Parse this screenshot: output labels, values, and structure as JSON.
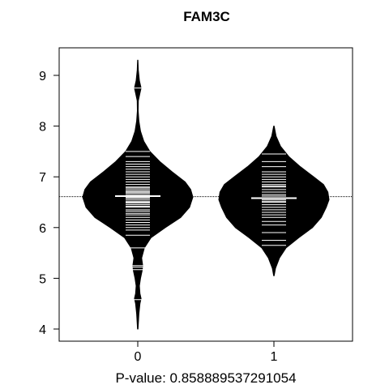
{
  "chart_data": {
    "type": "beanplot",
    "title": "FAM3C",
    "xlabel": "P-value: 0.858889537291054",
    "categories": [
      "0",
      "1"
    ],
    "yticks": [
      4,
      5,
      6,
      7,
      8,
      9
    ],
    "ylim": [
      3.8,
      9.6
    ],
    "overall_mean": 6.61,
    "groups": [
      {
        "name": "0",
        "mean": 6.62,
        "range": [
          4.0,
          9.3
        ],
        "density": [
          [
            4.0,
            0.005
          ],
          [
            4.3,
            0.02
          ],
          [
            4.5,
            0.04
          ],
          [
            4.6,
            0.06
          ],
          [
            4.7,
            0.04
          ],
          [
            4.85,
            0.03
          ],
          [
            5.0,
            0.05
          ],
          [
            5.15,
            0.08
          ],
          [
            5.25,
            0.09
          ],
          [
            5.4,
            0.07
          ],
          [
            5.6,
            0.12
          ],
          [
            5.8,
            0.24
          ],
          [
            6.0,
            0.5
          ],
          [
            6.2,
            0.78
          ],
          [
            6.4,
            0.94
          ],
          [
            6.6,
            1.0
          ],
          [
            6.75,
            0.96
          ],
          [
            6.9,
            0.86
          ],
          [
            7.1,
            0.62
          ],
          [
            7.3,
            0.4
          ],
          [
            7.5,
            0.22
          ],
          [
            7.7,
            0.11
          ],
          [
            7.9,
            0.05
          ],
          [
            8.1,
            0.02
          ],
          [
            8.3,
            0.008
          ],
          [
            8.5,
            0.01
          ],
          [
            8.65,
            0.04
          ],
          [
            8.75,
            0.06
          ],
          [
            8.9,
            0.03
          ],
          [
            9.1,
            0.01
          ],
          [
            9.3,
            0.003
          ]
        ],
        "observations": [
          4.58,
          5.17,
          5.22,
          5.25,
          5.6,
          5.85,
          5.95,
          6.0,
          6.05,
          6.1,
          6.15,
          6.2,
          6.25,
          6.28,
          6.32,
          6.35,
          6.4,
          6.42,
          6.45,
          6.48,
          6.5,
          6.52,
          6.55,
          6.58,
          6.6,
          6.62,
          6.65,
          6.68,
          6.7,
          6.72,
          6.75,
          6.78,
          6.8,
          6.85,
          6.9,
          6.95,
          7.0,
          7.05,
          7.1,
          7.15,
          7.2,
          7.25,
          7.3,
          7.4,
          7.5,
          8.75
        ]
      },
      {
        "name": "1",
        "mean": 6.58,
        "range": [
          5.05,
          8.0
        ],
        "density": [
          [
            5.05,
            0.005
          ],
          [
            5.2,
            0.03
          ],
          [
            5.4,
            0.1
          ],
          [
            5.6,
            0.22
          ],
          [
            5.8,
            0.45
          ],
          [
            6.0,
            0.7
          ],
          [
            6.2,
            0.86
          ],
          [
            6.4,
            0.95
          ],
          [
            6.55,
            1.0
          ],
          [
            6.7,
            0.98
          ],
          [
            6.85,
            0.9
          ],
          [
            7.0,
            0.72
          ],
          [
            7.2,
            0.48
          ],
          [
            7.4,
            0.27
          ],
          [
            7.6,
            0.12
          ],
          [
            7.8,
            0.04
          ],
          [
            8.0,
            0.005
          ]
        ],
        "observations": [
          5.65,
          5.75,
          5.9,
          6.05,
          6.12,
          6.2,
          6.25,
          6.3,
          6.35,
          6.4,
          6.45,
          6.5,
          6.52,
          6.55,
          6.58,
          6.62,
          6.65,
          6.7,
          6.75,
          6.8,
          6.82,
          6.85,
          6.9,
          6.95,
          7.0,
          7.05,
          7.1,
          7.2,
          7.3,
          7.45
        ]
      }
    ],
    "grid": false,
    "legend": "none"
  }
}
